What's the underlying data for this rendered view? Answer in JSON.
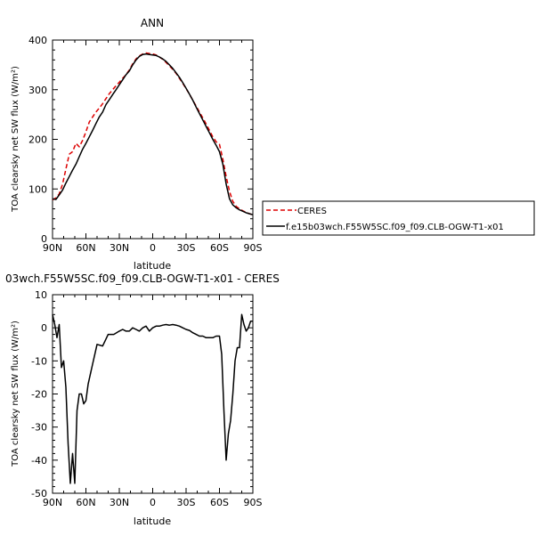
{
  "chart_data": [
    {
      "type": "line",
      "title": "ANN",
      "xlabel": "latitude",
      "ylabel": "TOA clearsky net SW flux (W/m²)",
      "x_ticks": [
        90,
        60,
        30,
        0,
        -30,
        -60,
        -90
      ],
      "x_tick_labels": [
        "90N",
        "60N",
        "30N",
        "0",
        "30S",
        "60S",
        "90S"
      ],
      "xlim": [
        90,
        -90
      ],
      "ylim": [
        0,
        400
      ],
      "y_ticks": [
        0,
        100,
        200,
        300,
        400
      ],
      "legend_position": "right",
      "series": [
        {
          "name": "CERES",
          "color": "#dd0000",
          "style": "dashed",
          "x": [
            90,
            87,
            84,
            81,
            78,
            75,
            72,
            69,
            66,
            63,
            60,
            57,
            54,
            51,
            48,
            45,
            42,
            39,
            36,
            33,
            30,
            27,
            24,
            21,
            18,
            15,
            12,
            9,
            6,
            3,
            0,
            -3,
            -6,
            -9,
            -12,
            -15,
            -18,
            -21,
            -24,
            -27,
            -30,
            -33,
            -36,
            -39,
            -42,
            -45,
            -48,
            -51,
            -54,
            -57,
            -60,
            -63,
            -66,
            -69,
            -72,
            -75,
            -78,
            -81,
            -84,
            -87,
            -90
          ],
          "y": [
            78,
            82,
            90,
            110,
            140,
            170,
            175,
            192,
            185,
            198,
            215,
            235,
            245,
            255,
            263,
            272,
            282,
            292,
            300,
            308,
            315,
            323,
            330,
            340,
            352,
            362,
            368,
            372,
            374,
            373,
            372,
            370,
            366,
            361,
            355,
            348,
            341,
            333,
            323,
            313,
            302,
            291,
            279,
            267,
            255,
            243,
            231,
            218,
            205,
            195,
            190,
            160,
            125,
            95,
            75,
            65,
            60,
            56,
            53,
            50,
            48
          ]
        },
        {
          "name": "f.e15b03wch.F55W5SC.f09_f09.CLB-OGW-T1-x01",
          "color": "#000000",
          "style": "solid",
          "x": [
            90,
            87,
            84,
            81,
            78,
            75,
            72,
            69,
            66,
            63,
            60,
            57,
            54,
            51,
            48,
            45,
            42,
            39,
            36,
            33,
            30,
            27,
            24,
            21,
            18,
            15,
            12,
            9,
            6,
            3,
            0,
            -3,
            -6,
            -9,
            -12,
            -15,
            -18,
            -21,
            -24,
            -27,
            -30,
            -33,
            -36,
            -39,
            -42,
            -45,
            -48,
            -51,
            -54,
            -57,
            -60,
            -63,
            -66,
            -69,
            -72,
            -75,
            -78,
            -81,
            -84,
            -87,
            -90
          ],
          "y": [
            80,
            79,
            88,
            98,
            112,
            125,
            138,
            150,
            165,
            180,
            192,
            205,
            218,
            232,
            245,
            255,
            270,
            280,
            290,
            300,
            310,
            320,
            330,
            338,
            350,
            360,
            367,
            371,
            372,
            371,
            370,
            369,
            366,
            362,
            357,
            350,
            343,
            334,
            325,
            314,
            303,
            291,
            279,
            265,
            252,
            239,
            226,
            213,
            200,
            188,
            175,
            150,
            110,
            80,
            68,
            62,
            58,
            55,
            52,
            50,
            48
          ]
        }
      ]
    },
    {
      "type": "line",
      "title": "03wch.F55W5SC.f09_f09.CLB-OGW-T1-x01 - CERES",
      "xlabel": "latitude",
      "ylabel": "TOA clearsky net SW flux (W/m²)",
      "x_ticks": [
        90,
        60,
        30,
        0,
        -30,
        -60,
        -90
      ],
      "x_tick_labels": [
        "90N",
        "60N",
        "30N",
        "0",
        "30S",
        "60S",
        "90S"
      ],
      "xlim": [
        90,
        -90
      ],
      "ylim": [
        -50,
        10
      ],
      "y_ticks": [
        -50,
        -40,
        -30,
        -20,
        -10,
        0,
        10
      ],
      "series": [
        {
          "name": "",
          "color": "#000000",
          "style": "solid",
          "x": [
            90,
            88,
            86,
            84,
            82,
            80,
            78,
            76,
            74,
            72,
            70,
            68,
            66,
            64,
            62,
            60,
            58,
            56,
            54,
            52,
            50,
            45,
            40,
            35,
            30,
            27,
            24,
            21,
            18,
            15,
            12,
            9,
            6,
            3,
            0,
            -3,
            -6,
            -9,
            -12,
            -15,
            -18,
            -21,
            -24,
            -27,
            -30,
            -33,
            -36,
            -39,
            -42,
            -45,
            -48,
            -51,
            -54,
            -57,
            -60,
            -62,
            -64,
            -66,
            -68,
            -70,
            -72,
            -74,
            -76,
            -78,
            -80,
            -82,
            -84,
            -86,
            -88,
            -90
          ],
          "y": [
            4,
            1,
            -3,
            1,
            -12,
            -10,
            -18,
            -35,
            -47,
            -38,
            -47,
            -25,
            -20,
            -20,
            -23,
            -22,
            -17,
            -14,
            -11,
            -8,
            -5,
            -5.5,
            -2,
            -2,
            -1,
            -0.5,
            -1,
            -1,
            0,
            -0.5,
            -1,
            0,
            0.5,
            -1,
            0,
            0.5,
            0.5,
            0.8,
            1,
            0.8,
            1,
            0.8,
            0.5,
            0,
            -0.5,
            -0.8,
            -1.5,
            -2,
            -2.5,
            -2.5,
            -3,
            -3,
            -3,
            -2.5,
            -2.5,
            -8,
            -25,
            -40,
            -32,
            -28,
            -20,
            -10,
            -6,
            -6,
            4,
            1,
            -1,
            0,
            2,
            2
          ]
        }
      ]
    }
  ]
}
